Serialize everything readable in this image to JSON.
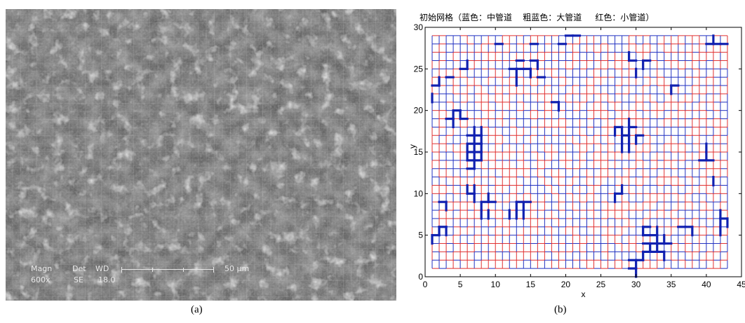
{
  "panel_a": {
    "caption": "(a)",
    "info": {
      "magn_label": "Magn",
      "magn_value": "600x",
      "det_label": "Det",
      "det_value": "SE",
      "wd_label": "WD",
      "wd_value": "18.0",
      "scale_text": "50 μm"
    }
  },
  "panel_b": {
    "caption": "(b)"
  },
  "colors": {
    "small": "#e03030",
    "medium": "#2030c0",
    "large": "#1020b0"
  },
  "chart_data": {
    "type": "grid-network",
    "title": "初始网格（蓝色：中管道    粗蓝色：大管道     红色：小管道）",
    "xlabel": "x",
    "ylabel": "y",
    "xlim": [
      0,
      45
    ],
    "ylim": [
      0,
      30
    ],
    "xticks": [
      0,
      5,
      10,
      15,
      20,
      25,
      30,
      35,
      40,
      45
    ],
    "yticks": [
      0,
      5,
      10,
      15,
      20,
      25,
      30
    ],
    "grid_nodes": {
      "x_range": [
        1,
        43
      ],
      "y_range": [
        1,
        29
      ]
    },
    "legend": [
      {
        "name": "蓝色：中管道",
        "color": "#2030c0"
      },
      {
        "name": "粗蓝色：大管道",
        "color": "#1020b0"
      },
      {
        "name": "红色：小管道",
        "color": "#e03030"
      }
    ],
    "large_segments": [
      [
        [
          1,
          23
        ],
        [
          2,
          23
        ]
      ],
      [
        [
          1,
          21
        ],
        [
          1,
          22
        ]
      ],
      [
        [
          2,
          24
        ],
        [
          2,
          23
        ]
      ],
      [
        [
          3,
          19
        ],
        [
          4,
          19
        ]
      ],
      [
        [
          4,
          19
        ],
        [
          4,
          20
        ]
      ],
      [
        [
          4,
          18
        ],
        [
          4,
          19
        ]
      ],
      [
        [
          4,
          20
        ],
        [
          5,
          20
        ]
      ],
      [
        [
          5,
          19
        ],
        [
          5,
          20
        ]
      ],
      [
        [
          5,
          19
        ],
        [
          6,
          19
        ]
      ],
      [
        [
          5,
          25
        ],
        [
          6,
          25
        ]
      ],
      [
        [
          6,
          25
        ],
        [
          6,
          26
        ]
      ],
      [
        [
          3,
          24
        ],
        [
          4,
          24
        ]
      ],
      [
        [
          1,
          5
        ],
        [
          2,
          5
        ]
      ],
      [
        [
          2,
          5
        ],
        [
          2,
          6
        ]
      ],
      [
        [
          2,
          6
        ],
        [
          3,
          6
        ]
      ],
      [
        [
          3,
          6
        ],
        [
          3,
          5
        ]
      ],
      [
        [
          1,
          4
        ],
        [
          1,
          5
        ]
      ],
      [
        [
          3,
          8
        ],
        [
          3,
          9
        ]
      ],
      [
        [
          2,
          9
        ],
        [
          3,
          9
        ]
      ],
      [
        [
          6,
          10
        ],
        [
          7,
          10
        ]
      ],
      [
        [
          6,
          10
        ],
        [
          6,
          11
        ]
      ],
      [
        [
          7,
          9
        ],
        [
          7,
          10
        ]
      ],
      [
        [
          7,
          11
        ],
        [
          7,
          10
        ]
      ],
      [
        [
          8,
          9
        ],
        [
          9,
          9
        ]
      ],
      [
        [
          9,
          9
        ],
        [
          10,
          9
        ]
      ],
      [
        [
          8,
          9
        ],
        [
          8,
          8
        ]
      ],
      [
        [
          9,
          9
        ],
        [
          9,
          10
        ]
      ],
      [
        [
          8,
          7
        ],
        [
          8,
          8
        ]
      ],
      [
        [
          9,
          8
        ],
        [
          9,
          7
        ]
      ],
      [
        [
          6,
          15
        ],
        [
          7,
          15
        ]
      ],
      [
        [
          7,
          15
        ],
        [
          8,
          15
        ]
      ],
      [
        [
          6,
          16
        ],
        [
          7,
          16
        ]
      ],
      [
        [
          7,
          16
        ],
        [
          8,
          16
        ]
      ],
      [
        [
          6,
          14
        ],
        [
          7,
          14
        ]
      ],
      [
        [
          7,
          14
        ],
        [
          8,
          14
        ]
      ],
      [
        [
          6,
          14
        ],
        [
          6,
          15
        ]
      ],
      [
        [
          6,
          15
        ],
        [
          6,
          16
        ]
      ],
      [
        [
          7,
          13
        ],
        [
          7,
          14
        ]
      ],
      [
        [
          7,
          14
        ],
        [
          7,
          15
        ]
      ],
      [
        [
          7,
          15
        ],
        [
          7,
          16
        ]
      ],
      [
        [
          7,
          16
        ],
        [
          7,
          17
        ]
      ],
      [
        [
          7,
          17
        ],
        [
          7,
          18
        ]
      ],
      [
        [
          8,
          15
        ],
        [
          8,
          16
        ]
      ],
      [
        [
          8,
          16
        ],
        [
          8,
          17
        ]
      ],
      [
        [
          8,
          17
        ],
        [
          8,
          18
        ]
      ],
      [
        [
          8,
          14
        ],
        [
          8,
          15
        ]
      ],
      [
        [
          7,
          17
        ],
        [
          8,
          17
        ]
      ],
      [
        [
          6,
          17
        ],
        [
          7,
          17
        ]
      ],
      [
        [
          6,
          13
        ],
        [
          7,
          13
        ]
      ],
      [
        [
          13,
          9
        ],
        [
          14,
          9
        ]
      ],
      [
        [
          14,
          9
        ],
        [
          15,
          9
        ]
      ],
      [
        [
          13,
          9
        ],
        [
          13,
          8
        ]
      ],
      [
        [
          14,
          8
        ],
        [
          14,
          9
        ]
      ],
      [
        [
          14,
          8
        ],
        [
          14,
          7
        ]
      ],
      [
        [
          13,
          7
        ],
        [
          13,
          8
        ]
      ],
      [
        [
          12,
          7
        ],
        [
          12,
          8
        ]
      ],
      [
        [
          12,
          25
        ],
        [
          13,
          25
        ]
      ],
      [
        [
          13,
          25
        ],
        [
          14,
          25
        ]
      ],
      [
        [
          13,
          24
        ],
        [
          13,
          25
        ]
      ],
      [
        [
          13,
          24
        ],
        [
          13,
          23
        ]
      ],
      [
        [
          15,
          25
        ],
        [
          15,
          24
        ]
      ],
      [
        [
          14,
          25
        ],
        [
          15,
          25
        ]
      ],
      [
        [
          16,
          24
        ],
        [
          17,
          24
        ]
      ],
      [
        [
          15,
          26
        ],
        [
          16,
          26
        ]
      ],
      [
        [
          16,
          25
        ],
        [
          16,
          26
        ]
      ],
      [
        [
          14,
          26
        ],
        [
          13,
          26
        ]
      ],
      [
        [
          18,
          21
        ],
        [
          19,
          21
        ]
      ],
      [
        [
          19,
          20
        ],
        [
          19,
          21
        ]
      ],
      [
        [
          27,
          18
        ],
        [
          28,
          18
        ]
      ],
      [
        [
          28,
          18
        ],
        [
          28,
          17
        ]
      ],
      [
        [
          28,
          17
        ],
        [
          29,
          17
        ]
      ],
      [
        [
          29,
          17
        ],
        [
          29,
          18
        ]
      ],
      [
        [
          29,
          18
        ],
        [
          30,
          18
        ]
      ],
      [
        [
          28,
          16
        ],
        [
          28,
          17
        ]
      ],
      [
        [
          29,
          16
        ],
        [
          29,
          17
        ]
      ],
      [
        [
          30,
          16
        ],
        [
          30,
          17
        ]
      ],
      [
        [
          30,
          17
        ],
        [
          31,
          17
        ]
      ],
      [
        [
          27,
          17
        ],
        [
          27,
          18
        ]
      ],
      [
        [
          29,
          15
        ],
        [
          29,
          16
        ]
      ],
      [
        [
          28,
          15
        ],
        [
          28,
          16
        ]
      ],
      [
        [
          29,
          19
        ],
        [
          29,
          18
        ]
      ],
      [
        [
          29,
          26
        ],
        [
          29,
          27
        ]
      ],
      [
        [
          29,
          26
        ],
        [
          30,
          26
        ]
      ],
      [
        [
          30,
          24
        ],
        [
          30,
          25
        ]
      ],
      [
        [
          31,
          26
        ],
        [
          32,
          26
        ]
      ],
      [
        [
          31,
          26
        ],
        [
          31,
          25
        ]
      ],
      [
        [
          35,
          23
        ],
        [
          36,
          23
        ]
      ],
      [
        [
          35,
          22
        ],
        [
          35,
          23
        ]
      ],
      [
        [
          27,
          9
        ],
        [
          27,
          10
        ]
      ],
      [
        [
          27,
          10
        ],
        [
          28,
          10
        ]
      ],
      [
        [
          28,
          11
        ],
        [
          28,
          10
        ]
      ],
      [
        [
          29,
          1
        ],
        [
          30,
          1
        ]
      ],
      [
        [
          30,
          0
        ],
        [
          30,
          1
        ]
      ],
      [
        [
          30,
          1
        ],
        [
          30,
          2
        ]
      ],
      [
        [
          30,
          2
        ],
        [
          31,
          2
        ]
      ],
      [
        [
          29,
          2
        ],
        [
          30,
          2
        ]
      ],
      [
        [
          31,
          2
        ],
        [
          31,
          3
        ]
      ],
      [
        [
          31,
          3
        ],
        [
          32,
          3
        ]
      ],
      [
        [
          32,
          3
        ],
        [
          33,
          3
        ]
      ],
      [
        [
          33,
          3
        ],
        [
          34,
          3
        ]
      ],
      [
        [
          32,
          4
        ],
        [
          32,
          3
        ]
      ],
      [
        [
          33,
          4
        ],
        [
          33,
          3
        ]
      ],
      [
        [
          31,
          4
        ],
        [
          32,
          4
        ]
      ],
      [
        [
          32,
          4
        ],
        [
          33,
          4
        ]
      ],
      [
        [
          33,
          4
        ],
        [
          34,
          4
        ]
      ],
      [
        [
          34,
          4
        ],
        [
          35,
          4
        ]
      ],
      [
        [
          33,
          5
        ],
        [
          33,
          4
        ]
      ],
      [
        [
          32,
          5
        ],
        [
          33,
          5
        ]
      ],
      [
        [
          31,
          5
        ],
        [
          32,
          5
        ]
      ],
      [
        [
          31,
          6
        ],
        [
          32,
          6
        ]
      ],
      [
        [
          31,
          5
        ],
        [
          31,
          6
        ]
      ],
      [
        [
          34,
          3
        ],
        [
          34,
          2
        ]
      ],
      [
        [
          34,
          5
        ],
        [
          34,
          4
        ]
      ],
      [
        [
          33,
          6
        ],
        [
          33,
          5
        ]
      ],
      [
        [
          36,
          6
        ],
        [
          37,
          6
        ]
      ],
      [
        [
          37,
          6
        ],
        [
          38,
          6
        ]
      ],
      [
        [
          38,
          5
        ],
        [
          38,
          6
        ]
      ],
      [
        [
          43,
          6
        ],
        [
          43,
          7
        ]
      ],
      [
        [
          42,
          7
        ],
        [
          43,
          7
        ]
      ],
      [
        [
          42,
          6
        ],
        [
          42,
          7
        ]
      ],
      [
        [
          42,
          5
        ],
        [
          42,
          6
        ]
      ],
      [
        [
          42,
          8
        ],
        [
          42,
          7
        ]
      ],
      [
        [
          39,
          14
        ],
        [
          40,
          14
        ]
      ],
      [
        [
          40,
          14
        ],
        [
          41,
          14
        ]
      ],
      [
        [
          40,
          15
        ],
        [
          40,
          14
        ]
      ],
      [
        [
          40,
          16
        ],
        [
          40,
          15
        ]
      ],
      [
        [
          41,
          11
        ],
        [
          41,
          12
        ]
      ],
      [
        [
          40,
          28
        ],
        [
          41,
          28
        ]
      ],
      [
        [
          41,
          28
        ],
        [
          42,
          28
        ]
      ],
      [
        [
          42,
          28
        ],
        [
          43,
          28
        ]
      ],
      [
        [
          41,
          29
        ],
        [
          41,
          28
        ]
      ],
      [
        [
          10,
          28
        ],
        [
          11,
          28
        ]
      ],
      [
        [
          20,
          29
        ],
        [
          21,
          29
        ]
      ],
      [
        [
          21,
          29
        ],
        [
          22,
          29
        ]
      ],
      [
        [
          19,
          28
        ],
        [
          20,
          28
        ]
      ],
      [
        [
          15,
          28
        ],
        [
          16,
          28
        ]
      ]
    ]
  }
}
